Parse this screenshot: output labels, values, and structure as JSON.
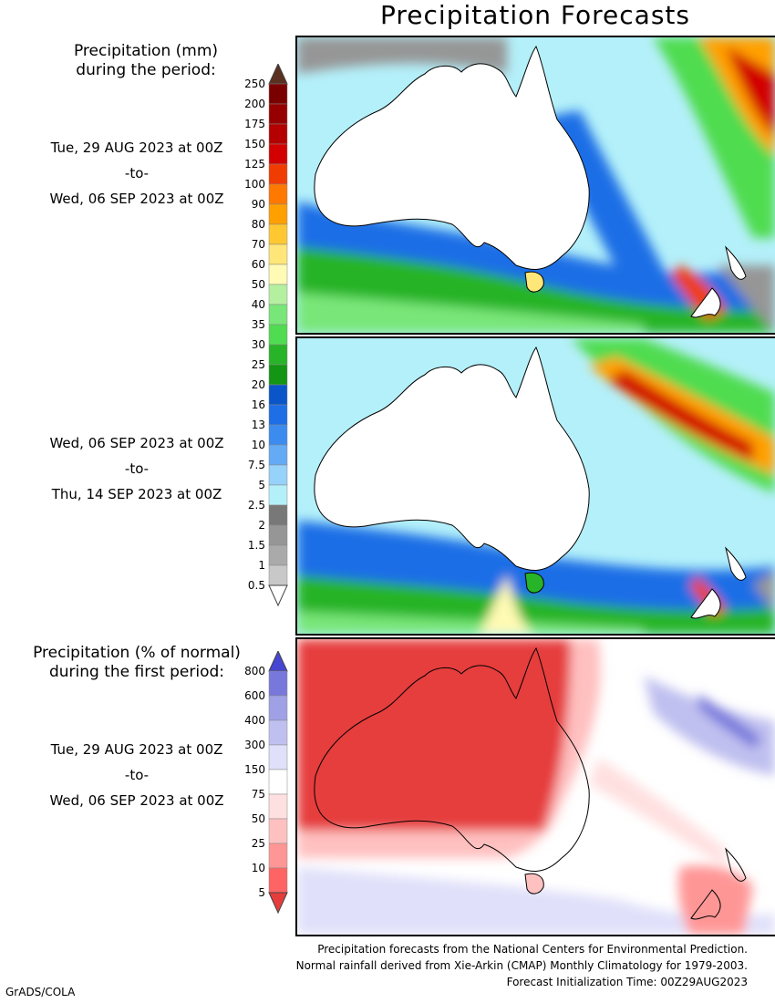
{
  "title": "Precipitation Forecasts",
  "precip_mm": {
    "heading_line1": "Precipitation (mm)",
    "heading_line2": "during the period:",
    "periods": [
      {
        "start": "Tue, 29 AUG 2023 at 00Z",
        "sep": "-to-",
        "end": "Wed, 06 SEP 2023 at 00Z"
      },
      {
        "start": "Wed, 06 SEP 2023 at 00Z",
        "sep": "-to-",
        "end": "Thu, 14 SEP 2023 at 00Z"
      }
    ],
    "legend_labels": [
      "250",
      "200",
      "175",
      "150",
      "125",
      "100",
      "90",
      "80",
      "70",
      "60",
      "50",
      "40",
      "35",
      "30",
      "25",
      "20",
      "16",
      "13",
      "10",
      "7.5",
      "5",
      "2.5",
      "2",
      "1.5",
      "1",
      "0.5"
    ],
    "legend_colors": [
      "#5a3020",
      "#7a0000",
      "#960000",
      "#b40000",
      "#d20000",
      "#f03c00",
      "#ff7800",
      "#ffa000",
      "#ffc832",
      "#ffe678",
      "#fffab4",
      "#b4f0a0",
      "#78e678",
      "#50dc50",
      "#28b428",
      "#149614",
      "#0a56c8",
      "#1e6ee6",
      "#3c8cf0",
      "#64aaf5",
      "#96d2fa",
      "#b4f0fa",
      "#787878",
      "#969696",
      "#aaaaaa",
      "#c8c8c8",
      "#ffffff"
    ]
  },
  "precip_pct": {
    "heading_line1": "Precipitation (% of normal)",
    "heading_line2": "during the first period:",
    "period": {
      "start": "Tue, 29 AUG 2023 at 00Z",
      "sep": "-to-",
      "end": "Wed, 06 SEP 2023 at 00Z"
    },
    "legend_labels": [
      "800",
      "600",
      "400",
      "300",
      "150",
      "75",
      "50",
      "25",
      "10",
      "5"
    ],
    "legend_colors": [
      "#4646d2",
      "#7878dc",
      "#a0a0e6",
      "#c0c0f0",
      "#e0e0fa",
      "#ffffff",
      "#ffe0e0",
      "#ffc0c0",
      "#ff9696",
      "#ff6464",
      "#e63c3c"
    ]
  },
  "credits": [
    "Precipitation forecasts from the National Centers for Environmental Prediction.",
    "Normal rainfall derived from Xie-Arkin (CMAP) Monthly Climatology for 1979-2003.",
    "Forecast Initialization Time: 00Z29AUG2023"
  ],
  "brand": "GrADS/COLA"
}
